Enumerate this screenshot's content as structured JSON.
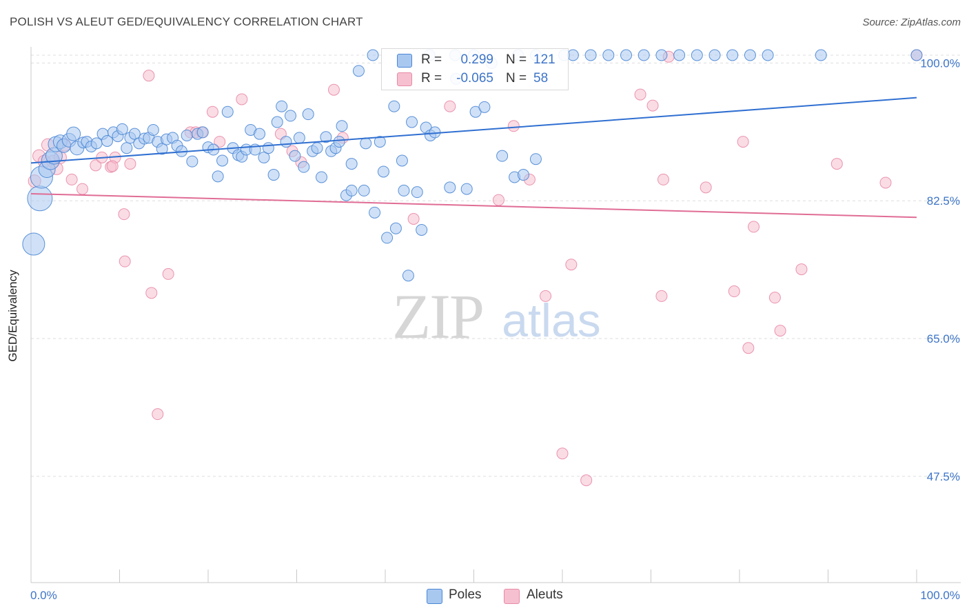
{
  "title": "POLISH VS ALEUT GED/EQUIVALENCY CORRELATION CHART",
  "source": "Source: ZipAtlas.com",
  "watermark": {
    "zip": "ZIP",
    "atlas": "atlas"
  },
  "legend": {
    "rows": [
      {
        "r_label": "R =",
        "r_value": "0.299",
        "n_label": "N =",
        "n_value": "121"
      },
      {
        "r_label": "R =",
        "r_value": "-0.065",
        "n_label": "N =",
        "n_value": "58"
      }
    ]
  },
  "bottom_legend": [
    "Poles",
    "Aleuts"
  ],
  "colors": {
    "poles_fill": "#a9c8f0",
    "poles_stroke": "#4a86d4",
    "poles_line": "#2f6fd1",
    "aleuts_fill": "#f6c0d0",
    "aleuts_stroke": "#e88aa6",
    "aleuts_line": "#e06c95",
    "tick_label": "#3d74c7",
    "grid": "#dddddd"
  },
  "chart_data": {
    "type": "scatter",
    "title": "POLISH VS ALEUT GED/EQUIVALENCY CORRELATION CHART",
    "xlabel": "",
    "ylabel": "GED/Equivalency",
    "xlim": [
      0,
      100
    ],
    "ylim": [
      34.0,
      101.5
    ],
    "x_tick_labels": [
      "0.0%",
      "100.0%"
    ],
    "y_ticks": [
      47.5,
      65.0,
      82.5,
      100.0
    ],
    "y_tick_labels": [
      "47.5%",
      "65.0%",
      "82.5%",
      "100.0%"
    ],
    "grid": true,
    "series": [
      {
        "name": "Poles",
        "R": 0.299,
        "N": 121,
        "trend": {
          "x": [
            0,
            100
          ],
          "y": [
            87.3,
            95.6
          ]
        },
        "points": [
          [
            0.3,
            77.0,
            16
          ],
          [
            1.0,
            82.8,
            18
          ],
          [
            1.2,
            85.5,
            16
          ],
          [
            1.8,
            86.5,
            12
          ],
          [
            2.2,
            87.6,
            13
          ],
          [
            2.6,
            88.2,
            12
          ],
          [
            2.8,
            89.7,
            11
          ],
          [
            3.3,
            90.0,
            10
          ],
          [
            3.7,
            89.5,
            10
          ],
          [
            4.3,
            90.2,
            10
          ],
          [
            4.8,
            91.0,
            10
          ],
          [
            5.2,
            89.2,
            10
          ],
          [
            5.9,
            89.9,
            8
          ],
          [
            6.3,
            90.0,
            8
          ],
          [
            6.8,
            89.4,
            8
          ],
          [
            7.4,
            89.8,
            8
          ],
          [
            8.1,
            91.0,
            8
          ],
          [
            8.6,
            90.1,
            8
          ],
          [
            9.3,
            91.2,
            8
          ],
          [
            9.8,
            90.7,
            8
          ],
          [
            10.3,
            91.6,
            8
          ],
          [
            10.8,
            89.2,
            8
          ],
          [
            11.2,
            90.5,
            8
          ],
          [
            11.7,
            91.0,
            8
          ],
          [
            12.2,
            89.8,
            8
          ],
          [
            12.8,
            90.4,
            8
          ],
          [
            13.3,
            90.5,
            8
          ],
          [
            13.8,
            91.5,
            8
          ],
          [
            14.3,
            90.0,
            8
          ],
          [
            14.8,
            89.1,
            8
          ],
          [
            15.3,
            90.3,
            8
          ],
          [
            16.0,
            90.5,
            8
          ],
          [
            16.5,
            89.5,
            8
          ],
          [
            17.0,
            88.8,
            8
          ],
          [
            17.6,
            90.8,
            8
          ],
          [
            18.2,
            87.5,
            8
          ],
          [
            18.8,
            91.0,
            8
          ],
          [
            19.4,
            91.2,
            8
          ],
          [
            20.0,
            89.3,
            8
          ],
          [
            20.6,
            89.0,
            8
          ],
          [
            21.1,
            85.6,
            8
          ],
          [
            21.6,
            87.6,
            8
          ],
          [
            22.2,
            93.8,
            8
          ],
          [
            22.8,
            89.2,
            8
          ],
          [
            23.4,
            88.3,
            8
          ],
          [
            23.8,
            88.1,
            8
          ],
          [
            24.3,
            89.0,
            8
          ],
          [
            24.8,
            91.5,
            8
          ],
          [
            25.3,
            89.0,
            8
          ],
          [
            25.8,
            91.0,
            8
          ],
          [
            26.3,
            88.0,
            8
          ],
          [
            26.8,
            89.2,
            8
          ],
          [
            27.4,
            85.8,
            8
          ],
          [
            27.8,
            92.5,
            8
          ],
          [
            28.3,
            94.5,
            8
          ],
          [
            28.8,
            90.0,
            8
          ],
          [
            29.3,
            93.3,
            8
          ],
          [
            29.8,
            88.2,
            8
          ],
          [
            30.3,
            90.5,
            8
          ],
          [
            30.8,
            86.8,
            8
          ],
          [
            31.3,
            93.5,
            8
          ],
          [
            31.8,
            88.8,
            8
          ],
          [
            32.3,
            89.2,
            8
          ],
          [
            32.8,
            85.5,
            8
          ],
          [
            33.3,
            90.6,
            8
          ],
          [
            33.9,
            88.8,
            8
          ],
          [
            34.4,
            89.2,
            8
          ],
          [
            34.8,
            90.0,
            8
          ],
          [
            35.1,
            92.0,
            8
          ],
          [
            35.6,
            83.2,
            8
          ],
          [
            36.2,
            83.8,
            8
          ],
          [
            36.2,
            87.2,
            8
          ],
          [
            37.0,
            99.0,
            8
          ],
          [
            37.6,
            83.8,
            8
          ],
          [
            37.8,
            89.8,
            8
          ],
          [
            38.6,
            101.0,
            8
          ],
          [
            38.8,
            81.0,
            8
          ],
          [
            39.4,
            90.0,
            8
          ],
          [
            39.8,
            86.2,
            8
          ],
          [
            40.2,
            77.8,
            8
          ],
          [
            41.0,
            94.5,
            8
          ],
          [
            41.2,
            79.0,
            8
          ],
          [
            41.9,
            87.6,
            8
          ],
          [
            42.1,
            83.8,
            8
          ],
          [
            42.6,
            73.0,
            8
          ],
          [
            43.0,
            92.5,
            8
          ],
          [
            43.6,
            83.6,
            8
          ],
          [
            44.1,
            78.8,
            8
          ],
          [
            44.6,
            91.8,
            8
          ],
          [
            45.1,
            90.8,
            8
          ],
          [
            45.6,
            91.2,
            8
          ],
          [
            47.3,
            84.2,
            8
          ],
          [
            47.9,
            101.0,
            8
          ],
          [
            49.2,
            84.0,
            8
          ],
          [
            50.2,
            93.8,
            8
          ],
          [
            51.2,
            94.4,
            8
          ],
          [
            53.2,
            88.2,
            8
          ],
          [
            54.6,
            85.5,
            8
          ],
          [
            55.6,
            85.8,
            8
          ],
          [
            57.0,
            87.8,
            8
          ],
          [
            60.2,
            101.0,
            8
          ],
          [
            61.2,
            101.0,
            8
          ],
          [
            63.2,
            101.0,
            8
          ],
          [
            65.2,
            101.0,
            8
          ],
          [
            67.2,
            101.0,
            8
          ],
          [
            69.2,
            101.0,
            8
          ],
          [
            71.2,
            101.0,
            8
          ],
          [
            73.2,
            101.0,
            8
          ],
          [
            75.2,
            101.0,
            8
          ],
          [
            77.2,
            101.0,
            8
          ],
          [
            79.2,
            101.0,
            8
          ],
          [
            81.2,
            101.0,
            8
          ],
          [
            83.2,
            101.0,
            8
          ],
          [
            89.2,
            101.0,
            8
          ],
          [
            100.0,
            101.0,
            8
          ],
          [
            55.0,
            101.0,
            8
          ],
          [
            57.0,
            101.0,
            8
          ],
          [
            45.0,
            101.0,
            8
          ],
          [
            50.0,
            101.0,
            8
          ],
          [
            48.0,
            98.0,
            8
          ],
          [
            52.0,
            100.0,
            8
          ]
        ]
      },
      {
        "name": "Aleuts",
        "R": -0.065,
        "N": 58,
        "trend": {
          "x": [
            0,
            100
          ],
          "y": [
            83.4,
            80.4
          ]
        },
        "points": [
          [
            0.4,
            85.0,
            9
          ],
          [
            0.9,
            88.2,
            9
          ],
          [
            1.5,
            87.5,
            9
          ],
          [
            1.9,
            89.6,
            9
          ],
          [
            2.5,
            87.5,
            9
          ],
          [
            2.9,
            86.6,
            9
          ],
          [
            3.3,
            88.0,
            9
          ],
          [
            3.8,
            89.6,
            9
          ],
          [
            4.6,
            85.2,
            8
          ],
          [
            5.8,
            84.0,
            8
          ],
          [
            7.3,
            87.0,
            8
          ],
          [
            8.0,
            88.0,
            8
          ],
          [
            9.0,
            86.8,
            8
          ],
          [
            9.5,
            88.0,
            8
          ],
          [
            10.5,
            80.8,
            8
          ],
          [
            10.6,
            74.8,
            8
          ],
          [
            11.2,
            87.2,
            8
          ],
          [
            13.3,
            98.4,
            8
          ],
          [
            13.6,
            70.8,
            8
          ],
          [
            14.3,
            55.4,
            8
          ],
          [
            15.5,
            73.2,
            8
          ],
          [
            18.0,
            91.2,
            8
          ],
          [
            18.6,
            91.2,
            8
          ],
          [
            19.3,
            91.2,
            8
          ],
          [
            20.5,
            93.8,
            8
          ],
          [
            21.3,
            90.0,
            8
          ],
          [
            23.8,
            95.4,
            8
          ],
          [
            28.2,
            91.0,
            8
          ],
          [
            29.5,
            88.8,
            8
          ],
          [
            30.5,
            87.4,
            8
          ],
          [
            34.2,
            96.6,
            8
          ],
          [
            35.2,
            90.5,
            8
          ],
          [
            43.2,
            80.2,
            8
          ],
          [
            47.3,
            94.5,
            8
          ],
          [
            52.8,
            82.6,
            8
          ],
          [
            54.5,
            92.0,
            8
          ],
          [
            56.3,
            85.2,
            8
          ],
          [
            58.1,
            70.4,
            8
          ],
          [
            60.0,
            50.4,
            8
          ],
          [
            61.0,
            74.4,
            8
          ],
          [
            62.7,
            47.0,
            8
          ],
          [
            68.8,
            96.0,
            8
          ],
          [
            70.2,
            94.6,
            8
          ],
          [
            71.2,
            70.4,
            8
          ],
          [
            71.4,
            85.2,
            8
          ],
          [
            72.0,
            100.8,
            8
          ],
          [
            76.2,
            84.2,
            8
          ],
          [
            79.4,
            71.0,
            8
          ],
          [
            80.4,
            90.0,
            8
          ],
          [
            81.0,
            63.8,
            8
          ],
          [
            81.6,
            79.2,
            8
          ],
          [
            84.0,
            70.2,
            8
          ],
          [
            84.6,
            66.0,
            8
          ],
          [
            87.0,
            73.8,
            8
          ],
          [
            91.0,
            87.2,
            8
          ],
          [
            96.5,
            84.8,
            8
          ],
          [
            100.0,
            101.0,
            8
          ],
          [
            9.2,
            86.9,
            8
          ]
        ]
      }
    ]
  }
}
